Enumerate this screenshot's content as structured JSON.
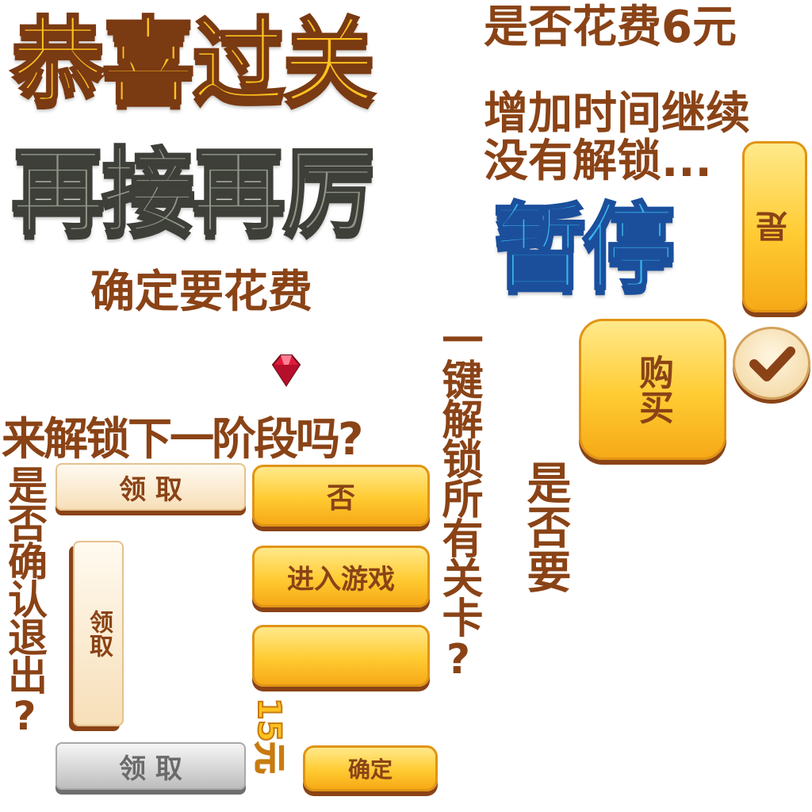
{
  "headers": {
    "congrats": "恭喜过关",
    "try_again": "再接再厉",
    "pause": "暂停"
  },
  "labels": {
    "spend_6": "是否花费6元",
    "add_time": "增加时间继续",
    "not_unlocked": "没有解锁...",
    "confirm_spend": "确定要花费",
    "unlock_next": "来解锁下一阶段吗?",
    "confirm_exit": "是否确认退出?",
    "unlock_all": "一键解锁所有关卡?",
    "whether_want": "是否要",
    "price": "15元"
  },
  "buttons": {
    "yes": "是",
    "buy": "购买",
    "no": "否",
    "enter_game": "进入游戏",
    "blank": "",
    "confirm": "确定",
    "claim": "领 取",
    "claim_vertical": "领取",
    "claim_gray": "领 取"
  },
  "icons": {
    "checkmark": "checkmark-icon",
    "gem": "gem-icon"
  },
  "colors": {
    "brown": "#8a4316",
    "gold": "#ffc21f",
    "blue": "#39b6ef",
    "gray": "#8f9488"
  }
}
